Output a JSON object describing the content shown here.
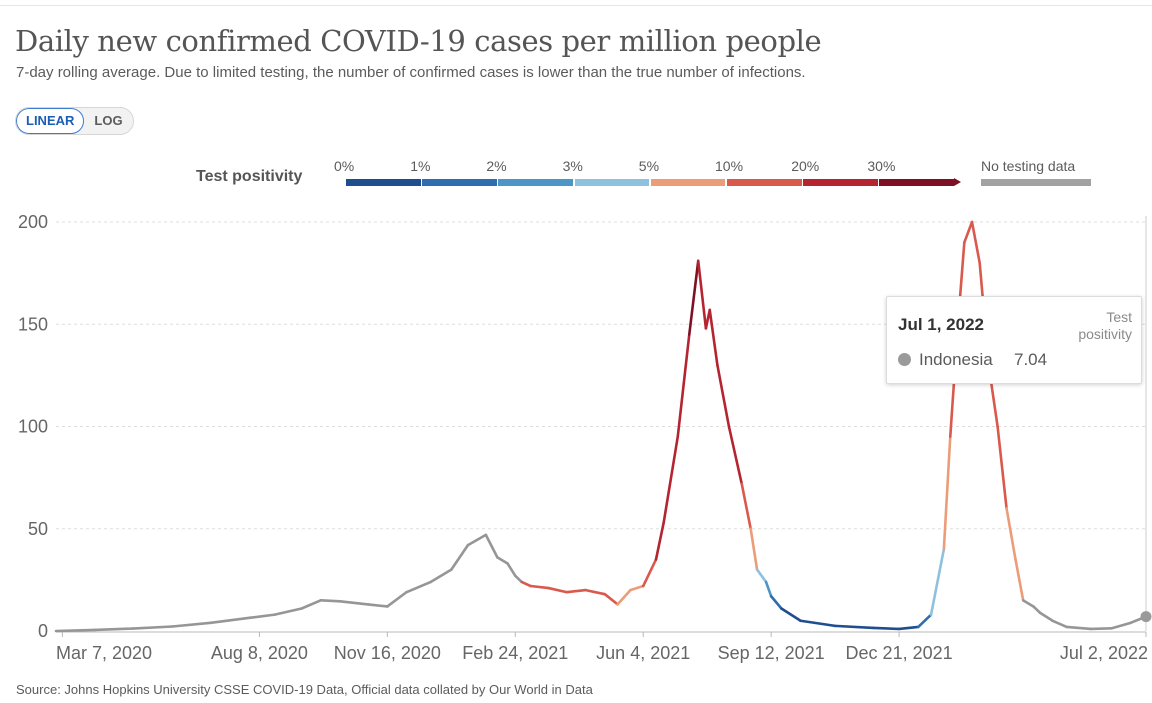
{
  "header": {
    "title": "Daily new confirmed COVID-19 cases per million people",
    "subtitle": "7-day rolling average. Due to limited testing, the number of confirmed cases is lower than the true number of infections."
  },
  "controls": {
    "linear_label": "LINEAR",
    "log_label": "LOG",
    "active": "LINEAR"
  },
  "legend": {
    "title": "Test positivity",
    "bins": [
      {
        "label": "0%",
        "color": "#1f4e8f"
      },
      {
        "label": "1%",
        "color": "#2f6db1"
      },
      {
        "label": "2%",
        "color": "#4b96c7"
      },
      {
        "label": "3%",
        "color": "#8ec1de"
      },
      {
        "label": "5%",
        "color": "#ec9c78"
      },
      {
        "label": "10%",
        "color": "#d9594c"
      },
      {
        "label": "20%",
        "color": "#b42531"
      },
      {
        "label": "30%",
        "color": "#7d1024"
      }
    ],
    "no_data_label": "No testing data",
    "no_data_color": "#a2a2a2"
  },
  "tooltip": {
    "date": "Jul 1, 2022",
    "column_header": "Test positivity",
    "entity": "Indonesia",
    "value": "7.04"
  },
  "source": "Source: Johns Hopkins University CSSE COVID-19 Data, Official data collated by Our World in Data",
  "chart_data": {
    "type": "line",
    "title": "Daily new confirmed COVID-19 cases per million people",
    "entity": "Indonesia",
    "ylim": [
      0,
      200
    ],
    "y_ticks": [
      0,
      50,
      100,
      150,
      200
    ],
    "x_start": "2020-03-02",
    "x_end": "2022-07-02",
    "x_ticks": [
      {
        "label": "Mar 7, 2020",
        "date": "2020-03-07"
      },
      {
        "label": "Aug 8, 2020",
        "date": "2020-08-08"
      },
      {
        "label": "Nov 16, 2020",
        "date": "2020-11-16"
      },
      {
        "label": "Feb 24, 2021",
        "date": "2021-02-24"
      },
      {
        "label": "Jun 4, 2021",
        "date": "2021-06-04"
      },
      {
        "label": "Sep 12, 2021",
        "date": "2021-09-12"
      },
      {
        "label": "Dec 21, 2021",
        "date": "2021-12-21"
      },
      {
        "label": "Jul 2, 2022",
        "date": "2022-07-02"
      }
    ],
    "series": [
      {
        "name": "Indonesia",
        "points": [
          [
            "2020-03-02",
            0,
            "na"
          ],
          [
            "2020-04-01",
            0.5,
            "na"
          ],
          [
            "2020-05-01",
            1.2,
            "na"
          ],
          [
            "2020-06-01",
            2.2,
            "na"
          ],
          [
            "2020-07-01",
            4,
            "na"
          ],
          [
            "2020-08-01",
            6.5,
            "na"
          ],
          [
            "2020-08-20",
            8,
            "na"
          ],
          [
            "2020-09-10",
            11,
            "na"
          ],
          [
            "2020-09-25",
            15,
            "na"
          ],
          [
            "2020-10-10",
            14.5,
            "na"
          ],
          [
            "2020-11-01",
            13,
            "na"
          ],
          [
            "2020-11-16",
            12,
            "na"
          ],
          [
            "2020-12-01",
            19,
            "na"
          ],
          [
            "2020-12-20",
            24,
            "na"
          ],
          [
            "2021-01-05",
            30,
            "na"
          ],
          [
            "2021-01-18",
            42,
            "na"
          ],
          [
            "2021-02-01",
            47,
            "na"
          ],
          [
            "2021-02-10",
            36,
            "na"
          ],
          [
            "2021-02-18",
            33,
            "na"
          ],
          [
            "2021-02-24",
            27,
            "na"
          ],
          [
            "2021-03-01",
            24,
            "na"
          ],
          [
            "2021-03-08",
            22,
            "ten"
          ],
          [
            "2021-03-22",
            21,
            "ten"
          ],
          [
            "2021-04-05",
            19,
            "ten"
          ],
          [
            "2021-04-20",
            20,
            "ten"
          ],
          [
            "2021-05-05",
            18,
            "ten"
          ],
          [
            "2021-05-15",
            13,
            "ten"
          ],
          [
            "2021-05-25",
            20,
            "five"
          ],
          [
            "2021-06-04",
            22,
            "five"
          ],
          [
            "2021-06-14",
            35,
            "ten"
          ],
          [
            "2021-06-20",
            53,
            "twenty"
          ],
          [
            "2021-07-01",
            95,
            "twenty"
          ],
          [
            "2021-07-10",
            145,
            "twenty"
          ],
          [
            "2021-07-17",
            181,
            "thirty"
          ],
          [
            "2021-07-23",
            148,
            "twenty"
          ],
          [
            "2021-07-26",
            157,
            "twenty"
          ],
          [
            "2021-08-01",
            130,
            "twenty"
          ],
          [
            "2021-08-10",
            100,
            "twenty"
          ],
          [
            "2021-08-20",
            72,
            "twenty"
          ],
          [
            "2021-08-27",
            50,
            "ten"
          ],
          [
            "2021-09-01",
            30,
            "five"
          ],
          [
            "2021-09-08",
            24,
            "three"
          ],
          [
            "2021-09-12",
            17,
            "two"
          ],
          [
            "2021-09-20",
            11,
            "one"
          ],
          [
            "2021-10-05",
            5,
            "zero"
          ],
          [
            "2021-11-01",
            2.5,
            "zero"
          ],
          [
            "2021-12-01",
            1.5,
            "zero"
          ],
          [
            "2021-12-21",
            1.0,
            "zero"
          ],
          [
            "2022-01-05",
            2,
            "zero"
          ],
          [
            "2022-01-15",
            8,
            "one"
          ],
          [
            "2022-01-25",
            40,
            "three"
          ],
          [
            "2022-01-30",
            95,
            "five"
          ],
          [
            "2022-02-05",
            150,
            "ten"
          ],
          [
            "2022-02-10",
            190,
            "ten"
          ],
          [
            "2022-02-16",
            200,
            "ten"
          ],
          [
            "2022-02-22",
            180,
            "ten"
          ],
          [
            "2022-03-01",
            130,
            "ten"
          ],
          [
            "2022-03-08",
            100,
            "ten"
          ],
          [
            "2022-03-15",
            60,
            "ten"
          ],
          [
            "2022-03-22",
            35,
            "five"
          ],
          [
            "2022-03-28",
            15,
            "five"
          ],
          [
            "2022-04-05",
            12,
            "na"
          ],
          [
            "2022-04-10",
            9,
            "na"
          ],
          [
            "2022-04-20",
            5,
            "na"
          ],
          [
            "2022-05-01",
            2,
            "na"
          ],
          [
            "2022-05-20",
            1,
            "na"
          ],
          [
            "2022-06-05",
            1.3,
            "na"
          ],
          [
            "2022-06-20",
            4,
            "na"
          ],
          [
            "2022-07-02",
            7.04,
            "na"
          ]
        ]
      }
    ],
    "color_bins": {
      "na": "#969696",
      "zero": "#1f4e8f",
      "one": "#2f6db1",
      "two": "#4b96c7",
      "three": "#8ec1de",
      "five": "#ec9c78",
      "ten": "#d9594c",
      "twenty": "#b42531",
      "thirty": "#7d1024"
    }
  }
}
